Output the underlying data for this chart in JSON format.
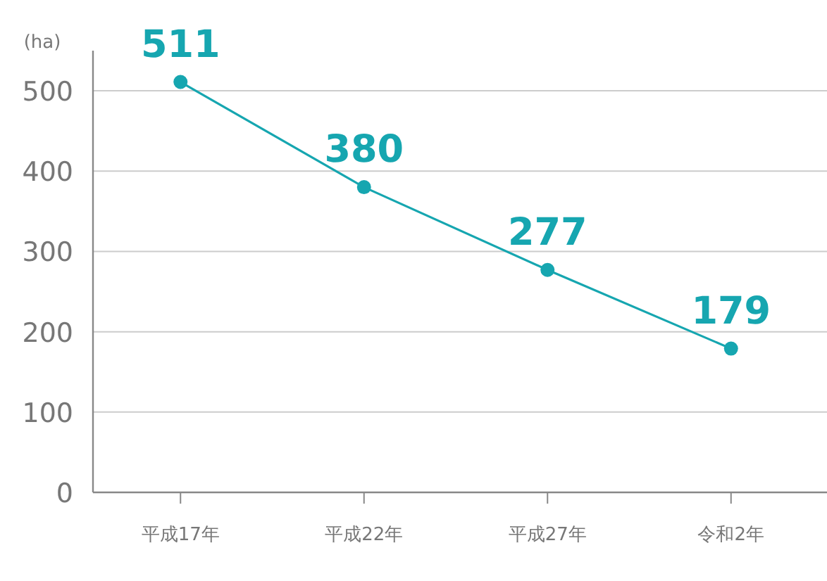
{
  "chart_data": {
    "type": "line",
    "ylabel": "(ha)",
    "categories": [
      "平成17年",
      "平成22年",
      "平成27年",
      "令和2年"
    ],
    "series": [
      {
        "color": "#16a6b0",
        "values": [
          511,
          380,
          277,
          179
        ]
      }
    ],
    "ylim": [
      0,
      550
    ],
    "yticks": [
      0,
      100,
      200,
      300,
      400,
      500
    ],
    "grid": "y",
    "marker": "circle",
    "line_style": "solid",
    "data_labels": true
  }
}
